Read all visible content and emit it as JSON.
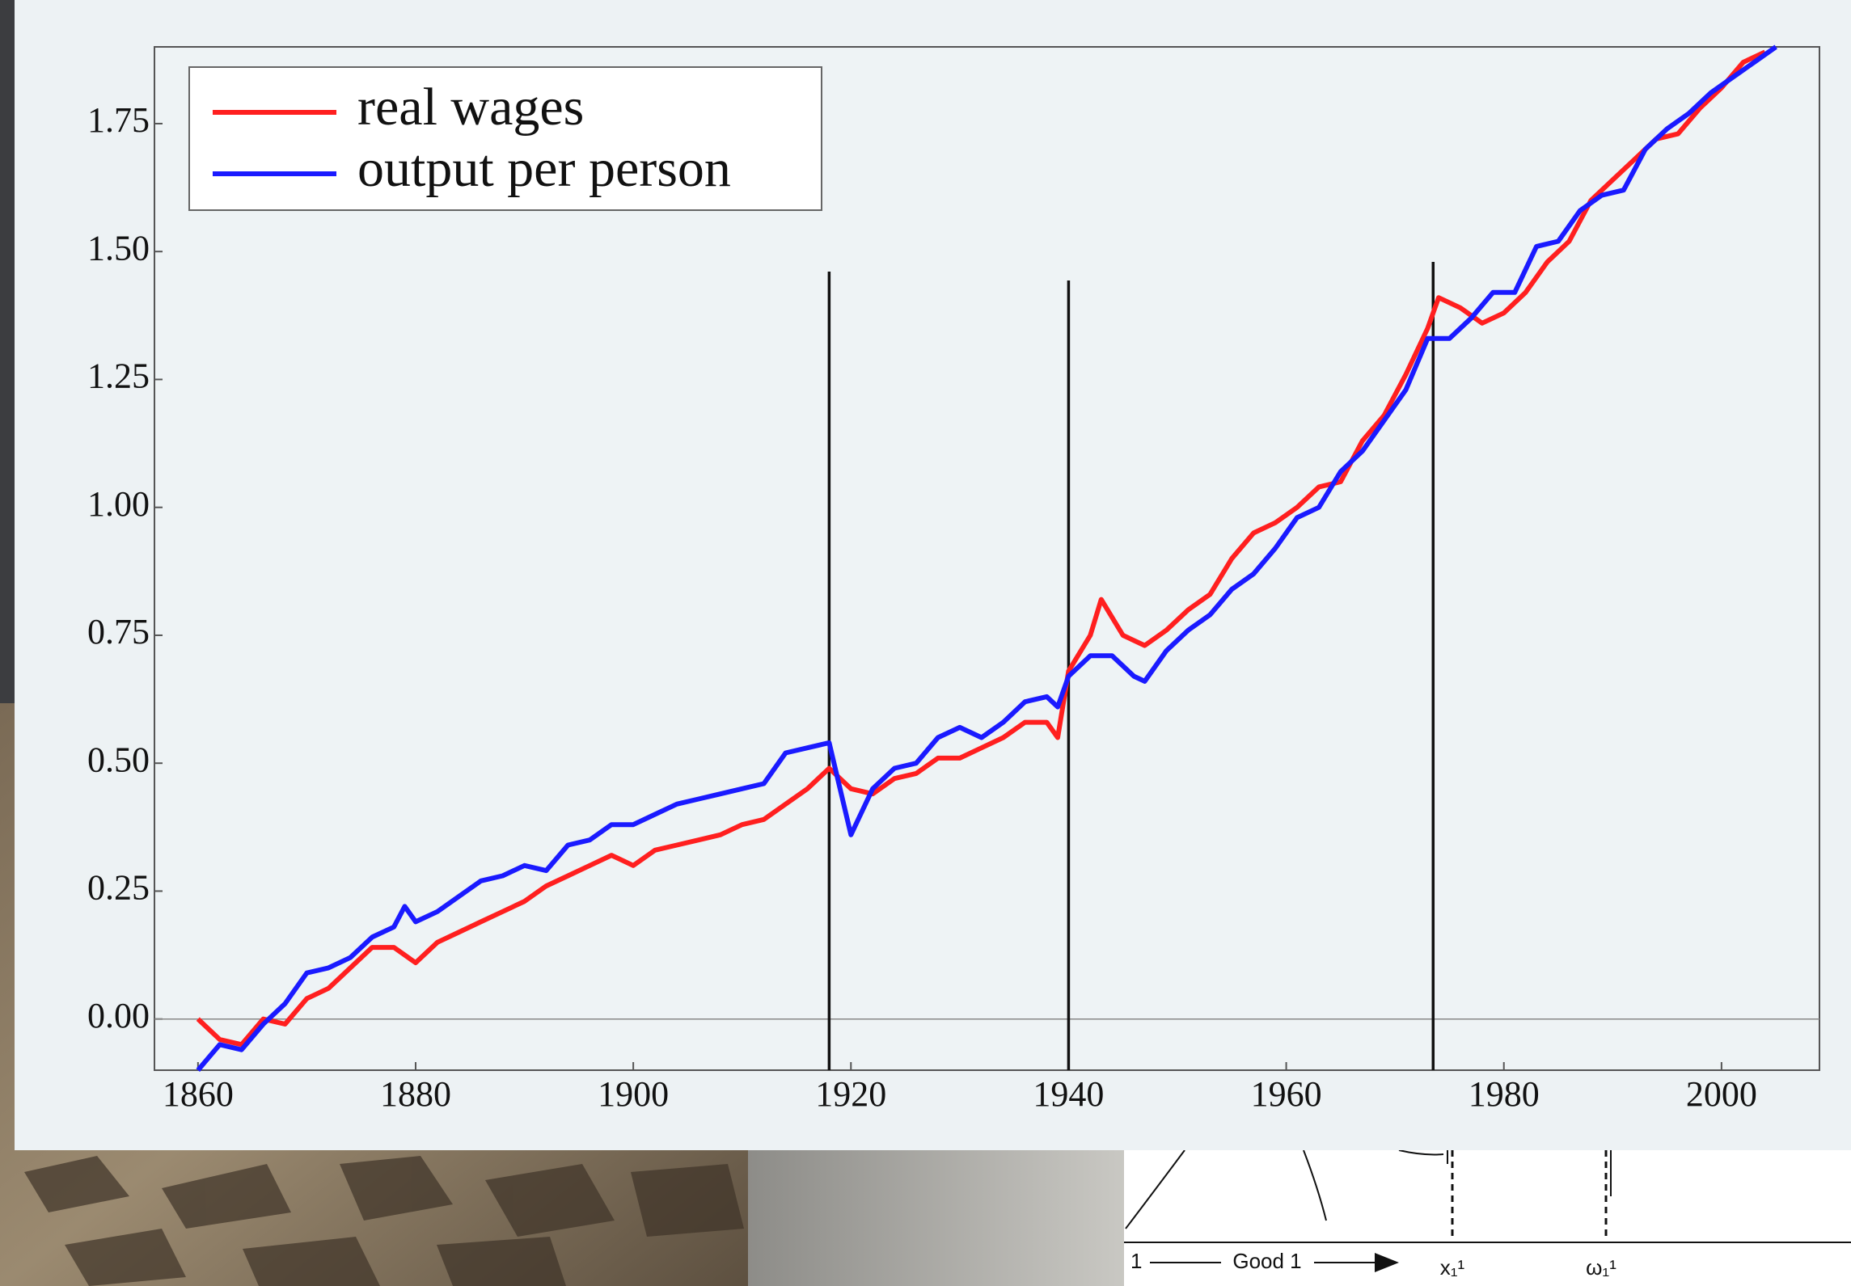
{
  "chart_data": {
    "type": "line",
    "xlim": [
      1856,
      2009
    ],
    "ylim": [
      -0.1,
      1.9
    ],
    "xticks": [
      1860,
      1880,
      1900,
      1920,
      1940,
      1960,
      1980,
      2000
    ],
    "yticks": [
      {
        "value": 0,
        "label": "0.00"
      },
      {
        "value": 0.25,
        "label": "0.25"
      },
      {
        "value": 0.5,
        "label": "0.50"
      },
      {
        "value": 0.75,
        "label": "0.75"
      },
      {
        "value": 1,
        "label": "1.00"
      },
      {
        "value": 1.25,
        "label": "1.25"
      },
      {
        "value": 1.5,
        "label": "1.50"
      },
      {
        "value": 1.75,
        "label": "1.75"
      }
    ],
    "hline": 0,
    "vlines": [
      1918,
      1940,
      1973.5
    ],
    "legend": "upper left",
    "series": [
      {
        "name": "real wages",
        "color": "#ff1f1f",
        "x": [
          1860,
          1862,
          1864,
          1866,
          1868,
          1870,
          1872,
          1874,
          1876,
          1878,
          1880,
          1882,
          1884,
          1886,
          1888,
          1890,
          1892,
          1894,
          1896,
          1898,
          1900,
          1902,
          1904,
          1906,
          1908,
          1910,
          1912,
          1914,
          1916,
          1918,
          1920,
          1922,
          1924,
          1926,
          1928,
          1930,
          1932,
          1934,
          1936,
          1938,
          1939,
          1940,
          1942,
          1943,
          1945,
          1947,
          1949,
          1951,
          1953,
          1955,
          1957,
          1959,
          1961,
          1963,
          1965,
          1967,
          1969,
          1971,
          1973,
          1974,
          1976,
          1978,
          1980,
          1982,
          1984,
          1986,
          1988,
          1990,
          1992,
          1994,
          1996,
          1998,
          2000,
          2002,
          2004
        ],
        "values": [
          0.0,
          -0.04,
          -0.05,
          0.0,
          -0.01,
          0.04,
          0.06,
          0.1,
          0.14,
          0.14,
          0.11,
          0.15,
          0.17,
          0.19,
          0.21,
          0.23,
          0.26,
          0.28,
          0.3,
          0.32,
          0.3,
          0.33,
          0.34,
          0.35,
          0.36,
          0.38,
          0.39,
          0.42,
          0.45,
          0.49,
          0.45,
          0.44,
          0.47,
          0.48,
          0.51,
          0.51,
          0.53,
          0.55,
          0.58,
          0.58,
          0.55,
          0.68,
          0.75,
          0.82,
          0.75,
          0.73,
          0.76,
          0.8,
          0.83,
          0.9,
          0.95,
          0.97,
          1.0,
          1.04,
          1.05,
          1.13,
          1.18,
          1.26,
          1.35,
          1.41,
          1.39,
          1.36,
          1.38,
          1.42,
          1.48,
          1.52,
          1.6,
          1.64,
          1.68,
          1.72,
          1.73,
          1.78,
          1.82,
          1.87,
          1.89
        ]
      },
      {
        "name": "output per person",
        "color": "#1a1aff",
        "x": [
          1860,
          1862,
          1864,
          1866,
          1868,
          1870,
          1872,
          1874,
          1876,
          1878,
          1879,
          1880,
          1882,
          1884,
          1886,
          1888,
          1890,
          1892,
          1894,
          1896,
          1898,
          1900,
          1902,
          1904,
          1906,
          1908,
          1910,
          1912,
          1914,
          1916,
          1918,
          1920,
          1922,
          1924,
          1926,
          1928,
          1930,
          1932,
          1934,
          1936,
          1938,
          1939,
          1940,
          1942,
          1944,
          1946,
          1947,
          1949,
          1951,
          1953,
          1955,
          1957,
          1959,
          1961,
          1963,
          1965,
          1967,
          1969,
          1971,
          1973,
          1975,
          1977,
          1979,
          1981,
          1983,
          1985,
          1987,
          1989,
          1991,
          1993,
          1995,
          1997,
          1999,
          2001,
          2003,
          2005
        ],
        "values": [
          -0.1,
          -0.05,
          -0.06,
          -0.01,
          0.03,
          0.09,
          0.1,
          0.12,
          0.16,
          0.18,
          0.22,
          0.19,
          0.21,
          0.24,
          0.27,
          0.28,
          0.3,
          0.29,
          0.34,
          0.35,
          0.38,
          0.38,
          0.4,
          0.42,
          0.43,
          0.44,
          0.45,
          0.46,
          0.52,
          0.53,
          0.54,
          0.36,
          0.45,
          0.49,
          0.5,
          0.55,
          0.57,
          0.55,
          0.58,
          0.62,
          0.63,
          0.61,
          0.67,
          0.71,
          0.71,
          0.67,
          0.66,
          0.72,
          0.76,
          0.79,
          0.84,
          0.87,
          0.92,
          0.98,
          1.0,
          1.07,
          1.11,
          1.17,
          1.23,
          1.33,
          1.33,
          1.37,
          1.42,
          1.42,
          1.51,
          1.52,
          1.58,
          1.61,
          1.62,
          1.7,
          1.74,
          1.77,
          1.81,
          1.84,
          1.87,
          1.9
        ]
      }
    ]
  },
  "background": {
    "axis_label": "1",
    "good_label": "Good 1",
    "x_label": "x₁¹",
    "omega_label": "ω₁¹"
  }
}
